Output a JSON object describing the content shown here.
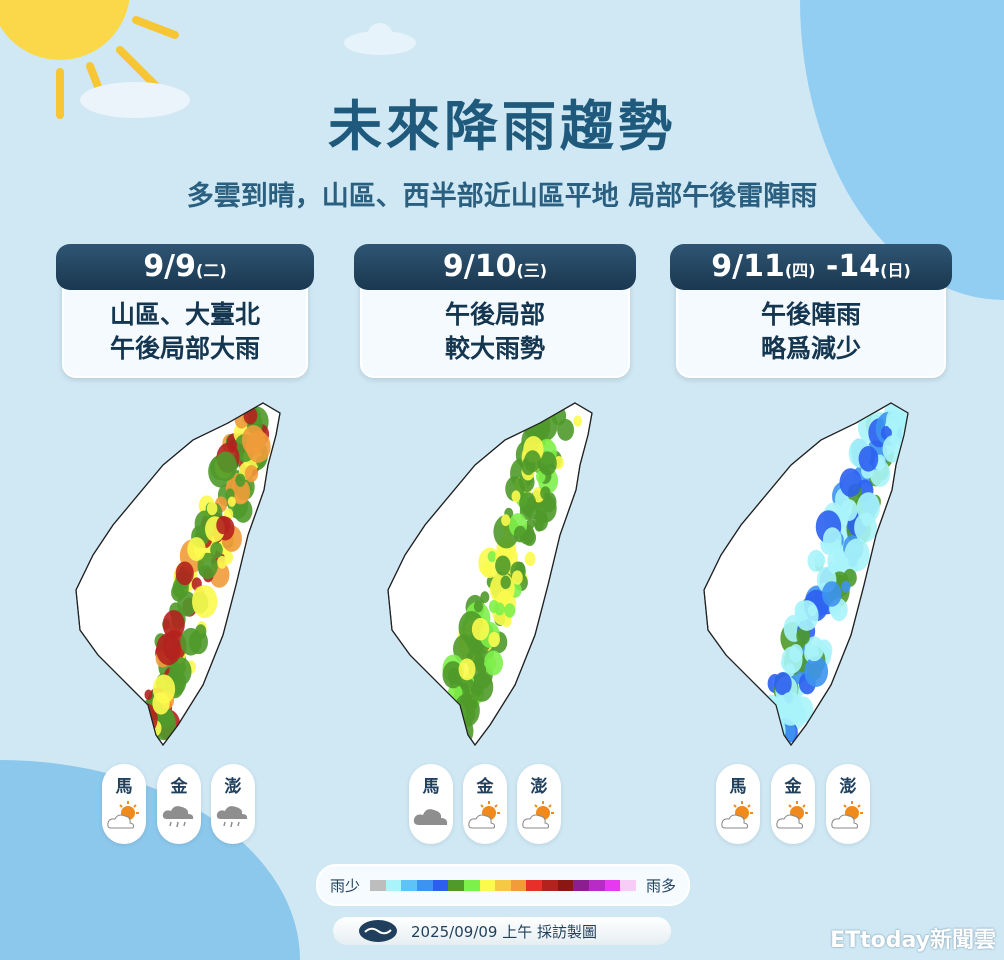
{
  "title": "未來降雨趨勢",
  "subtitle": "多雲到晴，山區、西半部近山區平地 局部午後雷陣雨",
  "cards": [
    {
      "date": "9/9",
      "weekday": "(二)",
      "line1": "山區、大臺北",
      "line2": "午後局部大雨",
      "islands": [
        {
          "name": "馬",
          "icon": "partly-sunny-icon"
        },
        {
          "name": "金",
          "icon": "rain-icon"
        },
        {
          "name": "澎",
          "icon": "rain-icon"
        }
      ]
    },
    {
      "date": "9/10",
      "weekday": "(三)",
      "line1": "午後局部",
      "line2": "較大雨勢",
      "islands": [
        {
          "name": "馬",
          "icon": "cloudy-icon"
        },
        {
          "name": "金",
          "icon": "partly-sunny-icon"
        },
        {
          "name": "澎",
          "icon": "partly-sunny-icon"
        }
      ]
    },
    {
      "date": "9/11",
      "weekday": "(四)",
      "date2": " -14",
      "weekday2": "(日)",
      "line1": "午後陣雨",
      "line2": "略爲減少",
      "islands": [
        {
          "name": "馬",
          "icon": "partly-sunny-icon"
        },
        {
          "name": "金",
          "icon": "partly-sunny-icon"
        },
        {
          "name": "澎",
          "icon": "partly-sunny-icon"
        }
      ]
    }
  ],
  "legend": {
    "low": "雨少",
    "high": "雨多",
    "colors": [
      "#bdbdbd",
      "#a8f4fa",
      "#5ec4f7",
      "#3d94f0",
      "#2c5ff0",
      "#4f9a2a",
      "#7ef04a",
      "#fbfb4e",
      "#f6c944",
      "#f09c3a",
      "#e8302a",
      "#b4221e",
      "#8b1712",
      "#8c1f90",
      "#b62cc4",
      "#e73af0",
      "#f7ccf7"
    ]
  },
  "footer": {
    "text": "2025/09/09 上午 採訪製圖"
  },
  "brand": "ETtoday新聞雲",
  "colors": {
    "title": "#1f5a7c",
    "header": "#1f3f5c",
    "background": "#cfe8f4"
  }
}
